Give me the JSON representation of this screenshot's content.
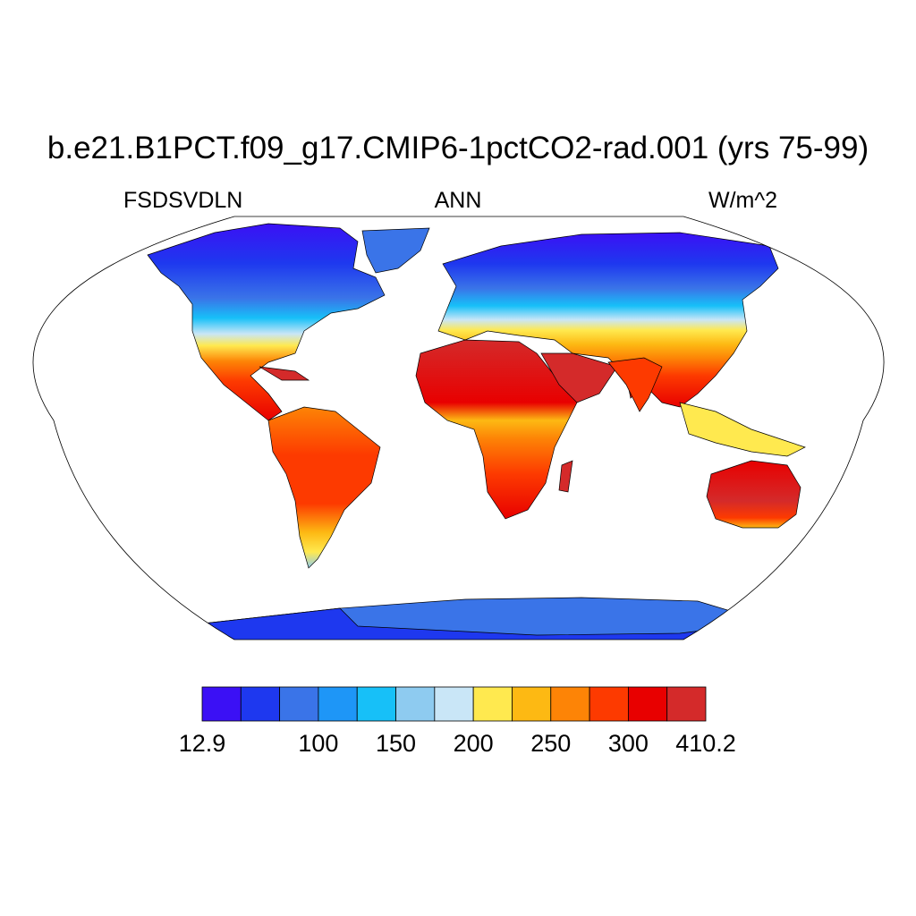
{
  "title": "b.e21.B1PCT.f09_g17.CMIP6-1pctCO2-rad.001 (yrs 75-99)",
  "variable": "FSDSVDLN",
  "season": "ANN",
  "units": "W/m^2",
  "colorbar": {
    "colors": [
      "#3b10f5",
      "#1e38ef",
      "#3a74e8",
      "#1e96f7",
      "#17c0f8",
      "#8ecbf0",
      "#c9e6f7",
      "#ffe94f",
      "#fdb913",
      "#fd8406",
      "#fd3a00",
      "#e80000",
      "#d42a2a"
    ],
    "labels": [
      {
        "text": "12.9",
        "boundary": 0
      },
      {
        "text": "100",
        "boundary": 3
      },
      {
        "text": "150",
        "boundary": 5
      },
      {
        "text": "200",
        "boundary": 7
      },
      {
        "text": "250",
        "boundary": 9
      },
      {
        "text": "300",
        "boundary": 11
      },
      {
        "text": "410.2",
        "boundary": 13
      }
    ]
  }
}
